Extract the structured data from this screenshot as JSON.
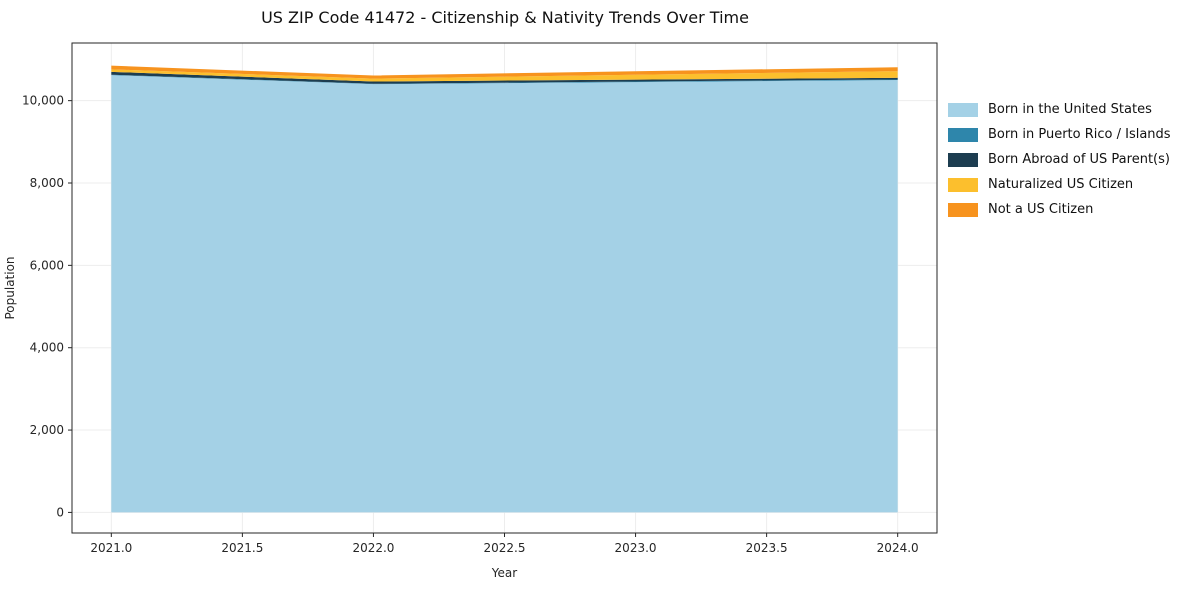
{
  "chart_data": {
    "type": "area",
    "stacked": true,
    "title": "US ZIP Code 41472 - Citizenship & Nativity Trends Over Time",
    "xlabel": "Year",
    "ylabel": "Population",
    "x": [
      2021,
      2022,
      2023,
      2024
    ],
    "series": [
      {
        "name": "Born in the United States",
        "color": "#a4d1e6",
        "values": [
          10620,
          10400,
          10450,
          10500
        ]
      },
      {
        "name": "Born in Puerto Rico / Islands",
        "color": "#2e86ab",
        "values": [
          10,
          10,
          15,
          15
        ]
      },
      {
        "name": "Born Abroad of US Parent(s)",
        "color": "#1d3d50",
        "values": [
          70,
          55,
          45,
          40
        ]
      },
      {
        "name": "Naturalized US Citizen",
        "color": "#fcbf2d",
        "values": [
          60,
          70,
          120,
          160
        ]
      },
      {
        "name": "Not a US Citizen",
        "color": "#f7931e",
        "values": [
          90,
          75,
          85,
          95
        ]
      }
    ],
    "xlim": [
      2020.85,
      2024.15
    ],
    "ylim": [
      -500,
      11400
    ],
    "xticks": [
      2021.0,
      2021.5,
      2022.0,
      2022.5,
      2023.0,
      2023.5,
      2024.0
    ],
    "yticks": [
      0,
      2000,
      4000,
      6000,
      8000,
      10000
    ],
    "grid": true,
    "legend_position": "right"
  }
}
